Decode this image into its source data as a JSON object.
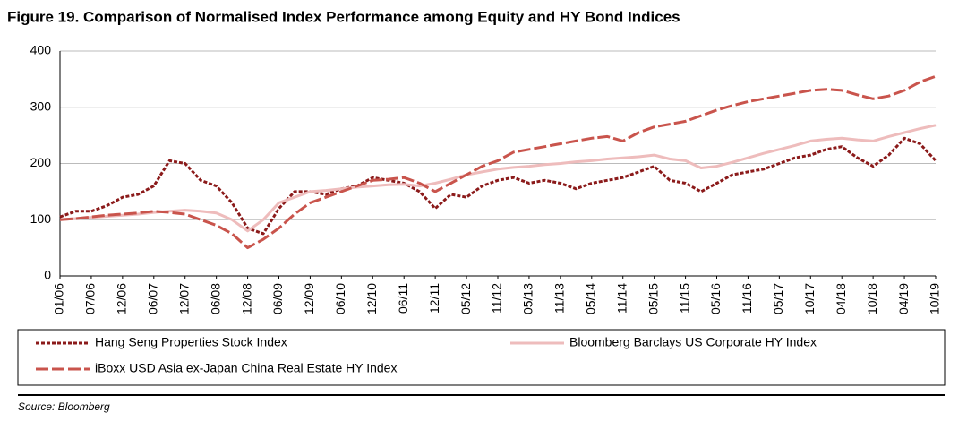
{
  "chart_data": {
    "type": "line",
    "title": "Figure 19. Comparison of Normalised Index Performance among Equity and HY Bond Indices",
    "source": "Source: Bloomberg",
    "categories": [
      "01/06",
      null,
      "07/06",
      null,
      "12/06",
      null,
      "06/07",
      null,
      "12/07",
      null,
      "06/08",
      null,
      "12/08",
      null,
      "06/09",
      null,
      "12/09",
      null,
      "06/10",
      null,
      "12/10",
      null,
      "06/11",
      null,
      "12/11",
      null,
      "05/12",
      null,
      "11/12",
      null,
      "05/13",
      null,
      "11/13",
      null,
      "05/14",
      null,
      "11/14",
      null,
      "05/15",
      null,
      "11/15",
      null,
      "05/16",
      null,
      "11/16",
      null,
      "05/17",
      null,
      "10/17",
      null,
      "04/18",
      null,
      "10/18",
      null,
      "04/19",
      null,
      "10/19"
    ],
    "series": [
      {
        "name": "Hang Seng Properties Stock Index",
        "color": "#8b1a1a",
        "values": [
          105,
          115,
          115,
          125,
          140,
          145,
          160,
          205,
          200,
          170,
          160,
          130,
          85,
          75,
          120,
          150,
          150,
          145,
          155,
          160,
          175,
          170,
          165,
          150,
          120,
          145,
          140,
          160,
          170,
          175,
          165,
          170,
          165,
          155,
          165,
          170,
          175,
          185,
          195,
          170,
          165,
          150,
          165,
          180,
          185,
          190,
          200,
          210,
          215,
          225,
          230,
          210,
          195,
          215,
          245,
          235,
          205
        ]
      },
      {
        "name": "Bloomberg Barclays US Corporate HY  Index",
        "color": "#eebcbc",
        "values": [
          100,
          102,
          104,
          106,
          108,
          110,
          113,
          115,
          117,
          115,
          112,
          100,
          80,
          100,
          130,
          140,
          150,
          152,
          155,
          158,
          160,
          162,
          163,
          160,
          165,
          172,
          180,
          185,
          190,
          193,
          195,
          198,
          200,
          203,
          205,
          208,
          210,
          212,
          215,
          208,
          205,
          192,
          195,
          202,
          210,
          218,
          225,
          232,
          240,
          243,
          245,
          242,
          240,
          248,
          255,
          262,
          268
        ]
      },
      {
        "name": "iBoxx USD Asia ex-Japan China Real Estate HY Index",
        "color": "#c9544c",
        "values": [
          100,
          102,
          105,
          108,
          110,
          112,
          115,
          113,
          110,
          100,
          90,
          75,
          50,
          65,
          85,
          110,
          130,
          140,
          150,
          160,
          170,
          172,
          175,
          165,
          150,
          165,
          180,
          195,
          205,
          220,
          225,
          230,
          235,
          240,
          245,
          248,
          240,
          255,
          265,
          270,
          275,
          285,
          295,
          303,
          310,
          315,
          320,
          325,
          330,
          332,
          330,
          322,
          315,
          320,
          330,
          345,
          355
        ]
      }
    ],
    "ylim": [
      0,
      400
    ],
    "yticks": [
      0,
      100,
      200,
      300,
      400
    ],
    "grid": true
  }
}
